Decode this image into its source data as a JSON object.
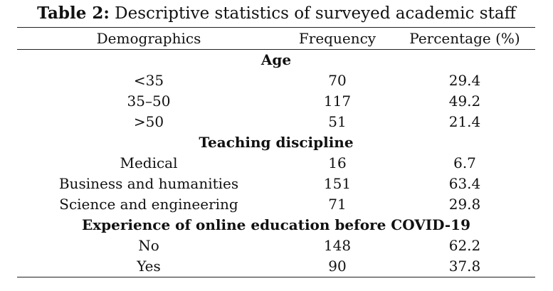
{
  "caption": {
    "label": "Table 2:",
    "text": " Descriptive statistics of surveyed academic staff"
  },
  "table": {
    "headers": [
      "Demographics",
      "Frequency",
      "Percentage (%)"
    ],
    "sections": [
      {
        "title": "Age",
        "rows": [
          {
            "label": "<35",
            "frequency": "70",
            "percentage": "29.4"
          },
          {
            "label": "35–50",
            "frequency": "117",
            "percentage": "49.2"
          },
          {
            "label": ">50",
            "frequency": "51",
            "percentage": "21.4"
          }
        ]
      },
      {
        "title": "Teaching discipline",
        "rows": [
          {
            "label": "Medical",
            "frequency": "16",
            "percentage": "6.7"
          },
          {
            "label": "Business and humanities",
            "frequency": "151",
            "percentage": "63.4"
          },
          {
            "label": "Science and engineering",
            "frequency": "71",
            "percentage": "29.8"
          }
        ]
      },
      {
        "title": "Experience of online education before COVID-19",
        "rows": [
          {
            "label": "No",
            "frequency": "148",
            "percentage": "62.2"
          },
          {
            "label": "Yes",
            "frequency": "90",
            "percentage": "37.8"
          }
        ]
      }
    ]
  }
}
